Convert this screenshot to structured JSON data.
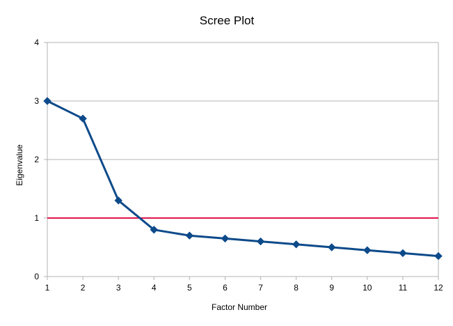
{
  "chart_data": {
    "type": "line",
    "title": "Scree Plot",
    "xlabel": "Factor Number",
    "ylabel": "Eigenvalue",
    "x": [
      1,
      2,
      3,
      4,
      5,
      6,
      7,
      8,
      9,
      10,
      11,
      12
    ],
    "x_tick_labels": [
      "1",
      "2",
      "3",
      "4",
      "5",
      "6",
      "7",
      "8",
      "9",
      "10",
      "11",
      "12"
    ],
    "y_tick_labels": [
      "0",
      "1",
      "2",
      "3",
      "4"
    ],
    "xlim": [
      1,
      12
    ],
    "ylim": [
      0,
      4
    ],
    "grid": "horizontal",
    "legend": "none",
    "series": [
      {
        "values": [
          3.0,
          2.7,
          1.3,
          0.8,
          0.7,
          0.65,
          0.6,
          0.55,
          0.5,
          0.45,
          0.4,
          0.35
        ],
        "color": "#0d4a8a",
        "marker": "diamond"
      }
    ],
    "reference_lines": [
      {
        "axis": "y",
        "value": 1,
        "color": "#e0144c"
      }
    ],
    "colors": {
      "grid": "#b3b3b3",
      "axis": "#b3b3b3"
    }
  }
}
